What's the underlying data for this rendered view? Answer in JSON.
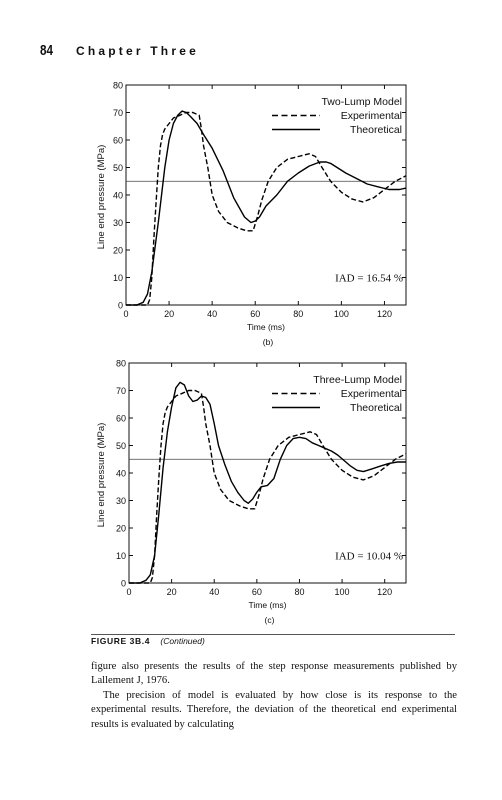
{
  "page": {
    "number": "84",
    "chapter": "Chapter Three",
    "figure_label": "FIGURE 3B.4",
    "figure_continued": "(Continued)",
    "paragraphs": [
      "figure also presents the results of the step response measurements published by Lallement J, 1976.",
      "The precision of model is evaluated by how close is its response to the experimental results. Therefore, the deviation of the theoretical end experimental results is evaluated by calculating"
    ]
  },
  "chart_data": [
    {
      "type": "line",
      "panel": "(b)",
      "legend_title": "Two-Lump Model",
      "legend_position": "top-right",
      "annotation": "IAD = 16.54 %",
      "xlabel": "Time (ms)",
      "ylabel": "Line end pressure (MPa)",
      "xlim": [
        0,
        130
      ],
      "ylim": [
        0,
        80
      ],
      "xticks": [
        0,
        20,
        40,
        60,
        80,
        100,
        120
      ],
      "yticks": [
        0,
        10,
        20,
        30,
        40,
        50,
        60,
        70,
        80
      ],
      "reference_line": 45,
      "grid": false,
      "series": [
        {
          "name": "Experimental",
          "style": "dashed",
          "x": [
            0,
            10,
            11,
            12,
            13,
            14,
            15,
            16,
            17,
            18,
            20,
            22,
            25,
            28,
            31,
            34,
            35,
            36,
            38,
            40,
            43,
            47,
            52,
            56,
            59,
            61,
            63,
            66,
            70,
            75,
            80,
            85,
            88,
            91,
            95,
            100,
            105,
            110,
            115,
            120,
            125,
            130
          ],
          "y": [
            0,
            0,
            2,
            10,
            25,
            38,
            50,
            58,
            62,
            64,
            66,
            68,
            69,
            70,
            70,
            69,
            64,
            58,
            50,
            40,
            34,
            30,
            28,
            27,
            27,
            32,
            38,
            45,
            50,
            53,
            54,
            55,
            54,
            50,
            45,
            41,
            38.5,
            37.5,
            39,
            42,
            45,
            47
          ]
        },
        {
          "name": "Theoretical",
          "style": "solid",
          "x": [
            0,
            5,
            8,
            10,
            12,
            15,
            18,
            20,
            22,
            24,
            26,
            28,
            30,
            33,
            36,
            40,
            45,
            50,
            55,
            58,
            60,
            62,
            65,
            70,
            75,
            80,
            85,
            90,
            93,
            95,
            98,
            102,
            107,
            112,
            117,
            122,
            127,
            130
          ],
          "y": [
            0,
            0,
            1,
            4,
            12,
            30,
            50,
            60,
            66,
            69,
            70.5,
            70,
            68.5,
            66,
            62,
            57,
            49,
            39,
            32,
            30,
            30.5,
            32,
            36,
            40,
            45,
            48,
            50.5,
            52,
            52,
            51.5,
            50,
            48,
            46,
            44,
            43,
            42,
            42,
            42.5
          ]
        }
      ]
    },
    {
      "type": "line",
      "panel": "(c)",
      "legend_title": "Three-Lump Model",
      "legend_position": "top-right",
      "annotation": "IAD = 10.04 %",
      "xlabel": "Time (ms)",
      "ylabel": "Line end pressure (MPa)",
      "xlim": [
        0,
        130
      ],
      "ylim": [
        0,
        80
      ],
      "xticks": [
        0,
        20,
        40,
        60,
        80,
        100,
        120
      ],
      "yticks": [
        0,
        10,
        20,
        30,
        40,
        50,
        60,
        70,
        80
      ],
      "reference_line": 45,
      "grid": false,
      "series": [
        {
          "name": "Experimental",
          "style": "dashed",
          "x": [
            0,
            10,
            11,
            12,
            13,
            14,
            15,
            16,
            17,
            18,
            20,
            22,
            25,
            28,
            31,
            34,
            35,
            36,
            38,
            40,
            43,
            47,
            52,
            56,
            59,
            61,
            63,
            66,
            70,
            75,
            80,
            85,
            88,
            91,
            95,
            100,
            105,
            110,
            115,
            120,
            125,
            130
          ],
          "y": [
            0,
            0,
            2,
            10,
            25,
            38,
            50,
            58,
            62,
            64,
            66,
            68,
            69,
            70,
            70,
            69,
            64,
            58,
            50,
            40,
            34,
            30,
            28,
            27,
            27,
            32,
            38,
            45,
            50,
            53,
            54,
            55,
            54,
            50,
            45,
            41,
            38.5,
            37.5,
            39,
            42,
            45,
            47
          ]
        },
        {
          "name": "Theoretical",
          "style": "solid",
          "x": [
            0,
            5,
            8,
            10,
            12,
            14,
            16,
            18,
            20,
            22,
            24,
            26,
            28,
            30,
            32,
            34,
            36,
            38,
            40,
            42,
            45,
            48,
            51,
            54,
            56,
            58,
            60,
            62,
            65,
            68,
            71,
            74,
            77,
            80,
            83,
            86,
            89,
            92,
            95,
            98,
            101,
            104,
            107,
            110,
            114,
            118,
            122,
            126,
            130
          ],
          "y": [
            0,
            0,
            1,
            3,
            10,
            25,
            42,
            55,
            64,
            71,
            73,
            72,
            68,
            66,
            66.5,
            68,
            67.5,
            65,
            58,
            50,
            43,
            37,
            33,
            30,
            29,
            30.5,
            33,
            35,
            35.5,
            38,
            45,
            50,
            52.5,
            53,
            52.5,
            51,
            50,
            49,
            48,
            46.5,
            44.5,
            42.5,
            41,
            40.5,
            41.5,
            42.5,
            43.5,
            44,
            44
          ]
        }
      ]
    }
  ]
}
